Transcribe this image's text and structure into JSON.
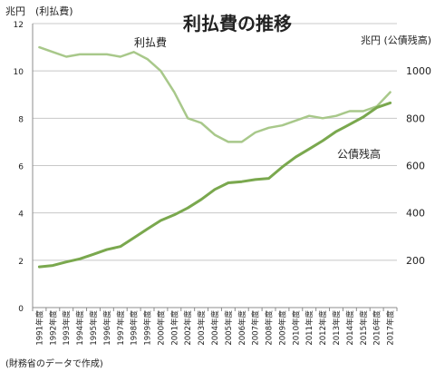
{
  "chart_data": {
    "type": "line",
    "title": "利払費の推移",
    "left_axis_label": "兆円　(利払費)",
    "right_axis_label": "兆円 (公債残高)",
    "source_note": "(財務省のデータで作成)",
    "categories": [
      "1991年度",
      "1992年度",
      "1993年度",
      "1994年度",
      "1995年度",
      "1996年度",
      "1997年度",
      "1998年度",
      "1999年度",
      "2000年度",
      "2001年度",
      "2002年度",
      "2003年度",
      "2004年度",
      "2005年度",
      "2006年度",
      "2007年度",
      "2008年度",
      "2009年度",
      "2010年度",
      "2011年度",
      "2012年度",
      "2013年度",
      "2014年度",
      "2015年度",
      "2016年度",
      "2017年度"
    ],
    "left_axis": {
      "ylim": [
        0,
        12
      ],
      "ticks": [
        0,
        2,
        4,
        6,
        8,
        10,
        12
      ]
    },
    "right_axis": {
      "ylim": [
        0,
        1200
      ],
      "ticks": [
        200,
        400,
        600,
        800,
        1000
      ]
    },
    "grid": true,
    "series": [
      {
        "name": "利払費",
        "axis": "left",
        "color": "#a8c88a",
        "values": [
          11.0,
          10.8,
          10.6,
          10.7,
          10.7,
          10.7,
          10.6,
          10.8,
          10.5,
          10.0,
          9.1,
          8.0,
          7.8,
          7.3,
          7.0,
          7.0,
          7.4,
          7.6,
          7.7,
          7.9,
          8.1,
          8.0,
          8.1,
          8.3,
          8.3,
          8.5,
          9.1
        ]
      },
      {
        "name": "公債残高",
        "axis": "right",
        "color": "#7aa84e",
        "values": [
          172,
          178,
          193,
          206,
          225,
          245,
          258,
          295,
          332,
          368,
          392,
          421,
          457,
          499,
          527,
          532,
          541,
          546,
          594,
          636,
          670,
          705,
          744,
          774,
          805,
          845,
          865
        ]
      }
    ]
  }
}
